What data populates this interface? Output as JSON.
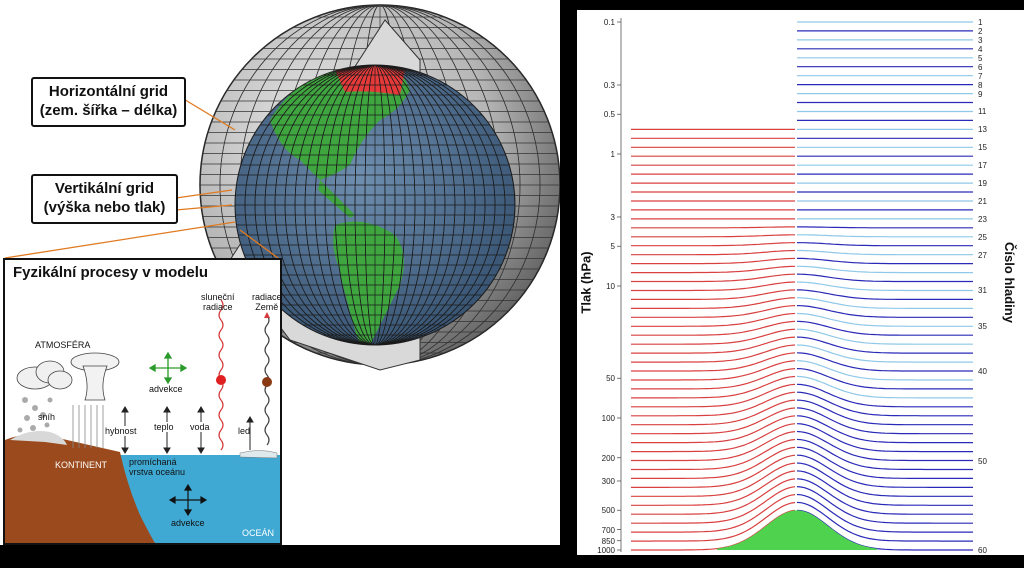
{
  "callouts": {
    "horizontal_line1": "Horizontální grid",
    "horizontal_line2": "(zem. šířka – délka)",
    "vertical_line1": "Vertikální grid",
    "vertical_line2": "(výška nebo tlak)"
  },
  "inset": {
    "title": "Fyzikální procesy v modelu",
    "atmosfera": "ATMOSFÉRA",
    "slunecni_radiace_1": "sluneční",
    "slunecni_radiace_2": "radiace",
    "radiace_zeme_1": "radiace",
    "radiace_zeme_2": "Země",
    "advekce_top": "advekce",
    "snih": "sníh",
    "hybnost": "hybnost",
    "teplo": "teplo",
    "voda": "voda",
    "led": "led",
    "kontinent": "KONTINENT",
    "promichana_1": "promíchaná",
    "promichana_2": "vrstva oceánu",
    "advekce_bottom": "advekce",
    "ocean": "OCEÁN"
  },
  "chart_data": {
    "type": "line",
    "ylabel": "Tlak (hPa)",
    "y2label": "Číslo hladiny",
    "y_scale": "log",
    "ylim": [
      0.1,
      1000
    ],
    "y_ticks": [
      "0.1",
      "0.3",
      "0.5",
      "1",
      "3",
      "5",
      "10",
      "50",
      "100",
      "200",
      "300",
      "500",
      "700",
      "850",
      "1000"
    ],
    "level_labels": [
      "1",
      "2",
      "3",
      "4",
      "5",
      "6",
      "7",
      "8",
      "9",
      "11",
      "13",
      "15",
      "17",
      "19",
      "21",
      "23",
      "25",
      "27",
      "31",
      "35",
      "40",
      "50",
      "60"
    ],
    "colors": {
      "red_levels": "#d94040",
      "blue_levels": "#2a2ab8",
      "light_blue_levels": "#8fc8e8",
      "terrain": "#4fd34f"
    }
  }
}
